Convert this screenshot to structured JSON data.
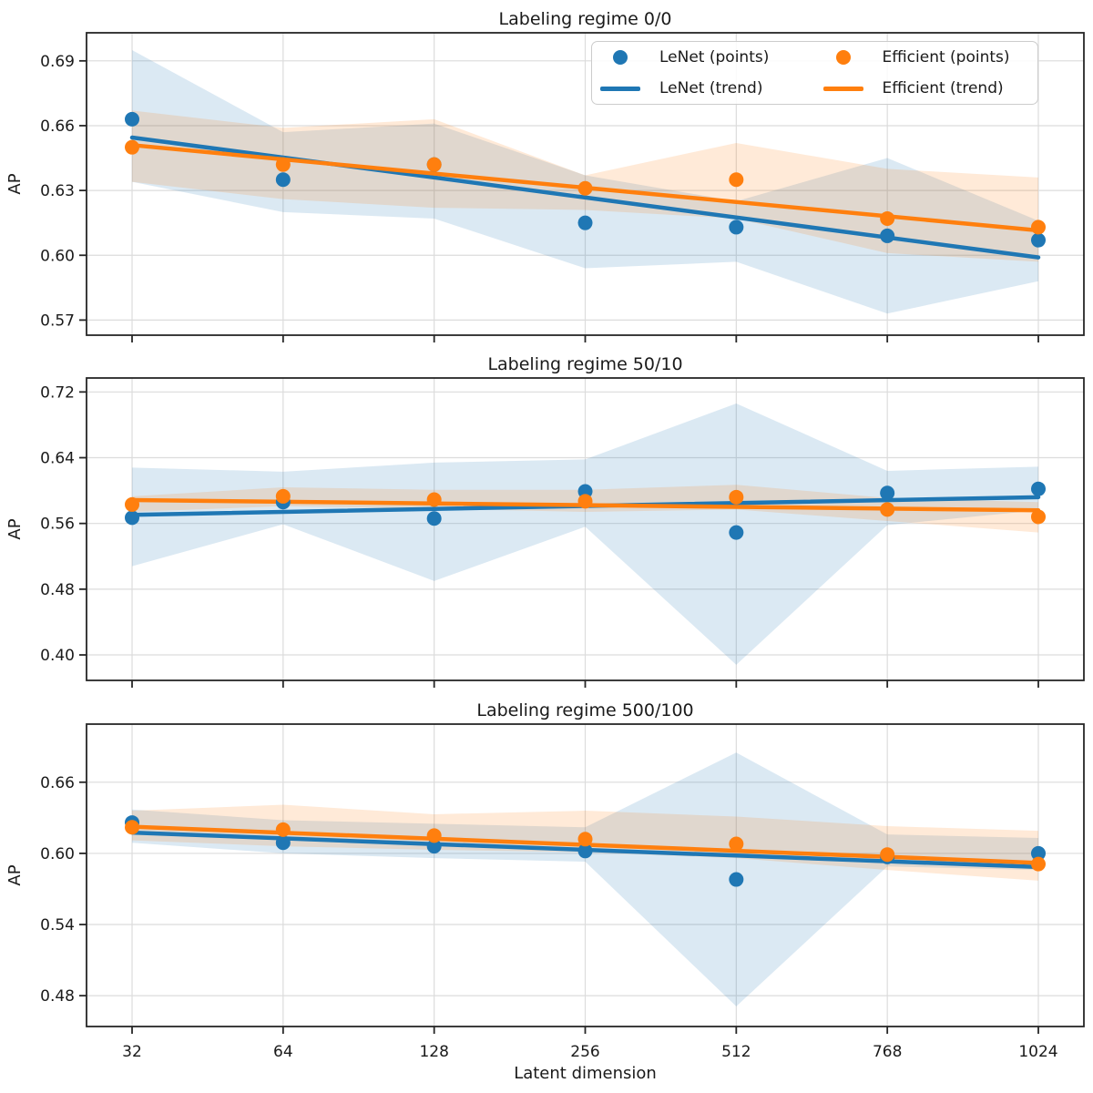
{
  "figure": {
    "xlabel": "Latent dimension",
    "x_tick_labels": [
      "32",
      "64",
      "128",
      "256",
      "512",
      "768",
      "1024"
    ],
    "legend": [
      {
        "label": "LeNet (points)",
        "marker": "dot",
        "color": "#1f77b4"
      },
      {
        "label": "LeNet (trend)",
        "marker": "line",
        "color": "#1f77b4"
      },
      {
        "label": "Efficient (points)",
        "marker": "dot",
        "color": "#ff7f0e"
      },
      {
        "label": "Efficient (trend)",
        "marker": "line",
        "color": "#ff7f0e"
      }
    ],
    "colors": {
      "lenet": "#1f77b4",
      "efficient": "#ff7f0e",
      "grid": "#dcdcdc",
      "spine": "#262626",
      "background": "#ffffff",
      "band_opacity": 0.16,
      "legend_border": "#cccccc"
    }
  },
  "chart_data": [
    {
      "type": "scatter",
      "title": "Labeling regime 0/0",
      "ylabel": "AP",
      "x_scale": "categorical-equal-spacing",
      "x_categories": [
        32,
        64,
        128,
        256,
        512,
        768,
        1024
      ],
      "ylim": [
        0.563,
        0.703
      ],
      "ytick_values": [
        0.57,
        0.6,
        0.63,
        0.66,
        0.69
      ],
      "ytick_labels": [
        "0.57",
        "0.60",
        "0.63",
        "0.66",
        "0.69"
      ],
      "grid": true,
      "legend_position": "upper right",
      "series": [
        {
          "name": "LeNet (points)",
          "kind": "points",
          "color": "#1f77b4",
          "values": [
            0.663,
            0.635,
            0.642,
            0.615,
            0.613,
            0.609,
            0.607
          ]
        },
        {
          "name": "Efficient (points)",
          "kind": "points",
          "color": "#ff7f0e",
          "values": [
            0.65,
            0.642,
            0.642,
            0.631,
            0.635,
            0.617,
            0.613
          ]
        },
        {
          "name": "LeNet (trend)",
          "kind": "trend",
          "color": "#1f77b4",
          "trend_endpoints": [
            0.6545,
            0.599
          ]
        },
        {
          "name": "Efficient (trend)",
          "kind": "trend",
          "color": "#ff7f0e",
          "trend_endpoints": [
            0.651,
            0.6115
          ]
        },
        {
          "name": "LeNet (band)",
          "kind": "band",
          "color": "#1f77b4",
          "lower": [
            0.634,
            0.62,
            0.617,
            0.594,
            0.597,
            0.573,
            0.588
          ],
          "upper": [
            0.695,
            0.657,
            0.661,
            0.637,
            0.625,
            0.645,
            0.616
          ]
        },
        {
          "name": "Efficient (band)",
          "kind": "band",
          "color": "#ff7f0e",
          "lower": [
            0.634,
            0.626,
            0.622,
            0.621,
            0.617,
            0.601,
            0.597
          ],
          "upper": [
            0.667,
            0.659,
            0.663,
            0.637,
            0.652,
            0.64,
            0.636
          ]
        }
      ]
    },
    {
      "type": "scatter",
      "title": "Labeling regime 50/10",
      "ylabel": "AP",
      "x_scale": "categorical-equal-spacing",
      "x_categories": [
        32,
        64,
        128,
        256,
        512,
        768,
        1024
      ],
      "ylim": [
        0.369,
        0.737
      ],
      "ytick_values": [
        0.4,
        0.48,
        0.56,
        0.64,
        0.72
      ],
      "ytick_labels": [
        "0.40",
        "0.48",
        "0.56",
        "0.64",
        "0.72"
      ],
      "grid": true,
      "legend_position": "none",
      "series": [
        {
          "name": "LeNet (points)",
          "kind": "points",
          "color": "#1f77b4",
          "values": [
            0.567,
            0.586,
            0.566,
            0.599,
            0.549,
            0.597,
            0.602
          ]
        },
        {
          "name": "Efficient (points)",
          "kind": "points",
          "color": "#ff7f0e",
          "values": [
            0.583,
            0.593,
            0.589,
            0.587,
            0.592,
            0.577,
            0.568
          ]
        },
        {
          "name": "LeNet (trend)",
          "kind": "trend",
          "color": "#1f77b4",
          "trend_endpoints": [
            0.5705,
            0.592
          ]
        },
        {
          "name": "Efficient (trend)",
          "kind": "trend",
          "color": "#ff7f0e",
          "trend_endpoints": [
            0.5885,
            0.576
          ]
        },
        {
          "name": "LeNet (band)",
          "kind": "band",
          "color": "#1f77b4",
          "lower": [
            0.508,
            0.559,
            0.49,
            0.556,
            0.388,
            0.558,
            0.576
          ],
          "upper": [
            0.628,
            0.623,
            0.634,
            0.638,
            0.706,
            0.624,
            0.629
          ]
        },
        {
          "name": "Efficient (band)",
          "kind": "band",
          "color": "#ff7f0e",
          "lower": [
            0.574,
            0.581,
            0.578,
            0.574,
            0.577,
            0.563,
            0.549
          ],
          "upper": [
            0.593,
            0.604,
            0.601,
            0.601,
            0.607,
            0.591,
            0.586
          ]
        }
      ]
    },
    {
      "type": "scatter",
      "title": "Labeling regime 500/100",
      "ylabel": "AP",
      "x_scale": "categorical-equal-spacing",
      "x_categories": [
        32,
        64,
        128,
        256,
        512,
        768,
        1024
      ],
      "ylim": [
        0.454,
        0.709
      ],
      "ytick_values": [
        0.48,
        0.54,
        0.6,
        0.66
      ],
      "ytick_labels": [
        "0.48",
        "0.54",
        "0.60",
        "0.66"
      ],
      "grid": true,
      "legend_position": "none",
      "series": [
        {
          "name": "LeNet (points)",
          "kind": "points",
          "color": "#1f77b4",
          "values": [
            0.626,
            0.609,
            0.606,
            0.602,
            0.578,
            0.597,
            0.6
          ]
        },
        {
          "name": "Efficient (points)",
          "kind": "points",
          "color": "#ff7f0e",
          "values": [
            0.622,
            0.62,
            0.615,
            0.612,
            0.608,
            0.599,
            0.591
          ]
        },
        {
          "name": "LeNet (trend)",
          "kind": "trend",
          "color": "#1f77b4",
          "trend_endpoints": [
            0.6175,
            0.5885
          ]
        },
        {
          "name": "Efficient (trend)",
          "kind": "trend",
          "color": "#ff7f0e",
          "trend_endpoints": [
            0.6225,
            0.592
          ]
        },
        {
          "name": "LeNet (band)",
          "kind": "band",
          "color": "#1f77b4",
          "lower": [
            0.609,
            0.6,
            0.596,
            0.593,
            0.471,
            0.589,
            0.586
          ],
          "upper": [
            0.637,
            0.628,
            0.625,
            0.622,
            0.685,
            0.616,
            0.613
          ]
        },
        {
          "name": "Efficient (band)",
          "kind": "band",
          "color": "#ff7f0e",
          "lower": [
            0.611,
            0.606,
            0.603,
            0.601,
            0.596,
            0.586,
            0.577
          ],
          "upper": [
            0.636,
            0.641,
            0.633,
            0.636,
            0.631,
            0.623,
            0.619
          ]
        }
      ]
    }
  ]
}
